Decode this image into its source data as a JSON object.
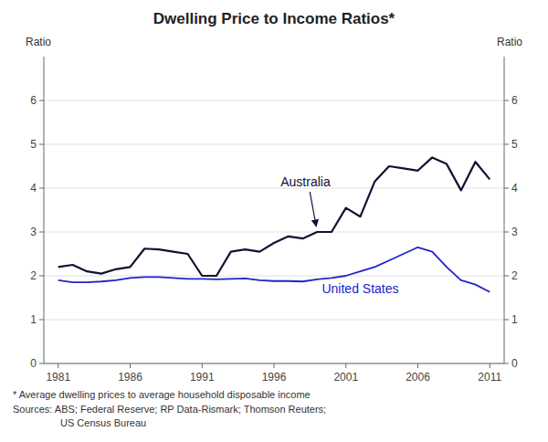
{
  "chart_data": {
    "type": "line",
    "title": "Dwelling Price to Income Ratios*",
    "ylabel": "Ratio",
    "y2label": "Ratio",
    "footnotes": [
      "*    Average dwelling prices to average household disposable income",
      "Sources: ABS; Federal Reserve; RP Data-Rismark; Thomson Reuters;",
      "US Census Bureau"
    ],
    "x": [
      1981,
      1982,
      1983,
      1984,
      1985,
      1986,
      1987,
      1988,
      1989,
      1990,
      1991,
      1992,
      1993,
      1994,
      1995,
      1996,
      1997,
      1998,
      1999,
      2000,
      2001,
      2002,
      2003,
      2004,
      2005,
      2006,
      2007,
      2008,
      2009,
      2010,
      2011
    ],
    "series": [
      {
        "name": "Australia",
        "color": "#111133",
        "values": [
          2.2,
          2.25,
          2.1,
          2.05,
          2.15,
          2.2,
          2.62,
          2.6,
          2.55,
          2.5,
          2.0,
          2.0,
          2.55,
          2.6,
          2.55,
          2.75,
          2.9,
          2.85,
          3.0,
          3.0,
          3.55,
          3.35,
          4.15,
          4.5,
          4.45,
          4.4,
          4.7,
          4.55,
          3.95,
          4.6,
          4.2
        ]
      },
      {
        "name": "United States",
        "color": "#2222cc",
        "values": [
          1.9,
          1.85,
          1.85,
          1.87,
          1.9,
          1.95,
          1.97,
          1.97,
          1.95,
          1.93,
          1.93,
          1.92,
          1.93,
          1.94,
          1.9,
          1.88,
          1.88,
          1.87,
          1.92,
          1.95,
          2.0,
          2.1,
          2.2,
          2.35,
          2.5,
          2.65,
          2.55,
          2.2,
          1.9,
          1.8,
          1.63
        ]
      }
    ],
    "xlim": [
      1980,
      2012
    ],
    "xticks": [
      1981,
      1986,
      1991,
      1996,
      2001,
      2006,
      2011
    ],
    "ylim": [
      0,
      7
    ],
    "yticks": [
      0,
      1,
      2,
      3,
      4,
      5,
      6
    ],
    "y2lim": [
      0,
      7
    ],
    "y2ticks": [
      0,
      1,
      2,
      3,
      4,
      5,
      6
    ],
    "grid": true
  }
}
